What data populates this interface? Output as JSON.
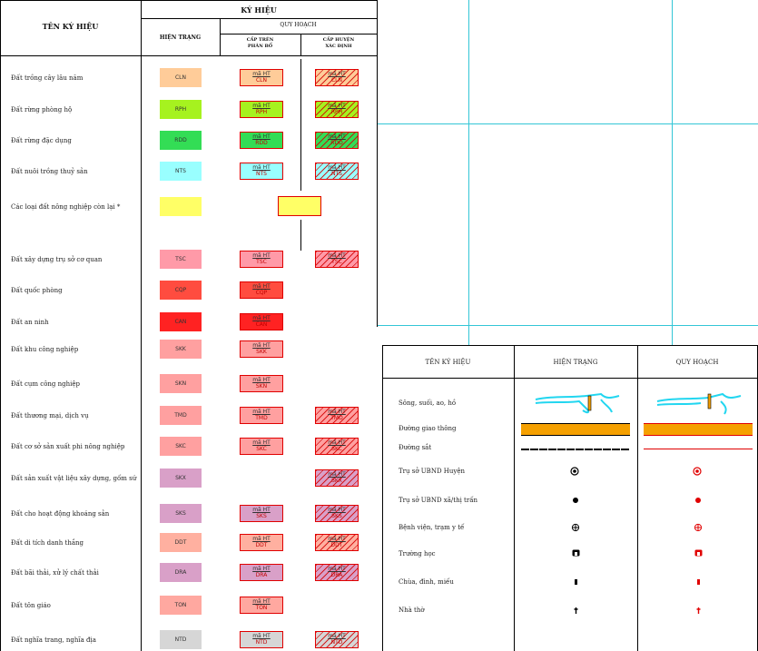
{
  "legend1": {
    "header": {
      "name_col": "TÊN KÝ HIỆU",
      "ky_hieu": "KÝ HIỆU",
      "hien_trang": "HIỆN TRẠNG",
      "quy_hoach": "QUY HOẠCH",
      "cap_tren_1": "CẤP TRÊN",
      "cap_tren_2": "PHÂN BỔ",
      "cap_huyen_1": "CẤP HUYỆN",
      "cap_huyen_2": "XÁC ĐỊNH"
    },
    "qh_numerator": "mã HT",
    "rows": [
      {
        "label": "Đất trồng cây lâu năm",
        "code": "CLN",
        "color": "#ffcc99",
        "alloc": true,
        "district": true
      },
      {
        "label": "Đất rừng phòng hộ",
        "code": "RPH",
        "color": "#a6f21f",
        "alloc": true,
        "district": true
      },
      {
        "label": "Đất rừng đặc dụng",
        "code": "RDD",
        "color": "#33dd55",
        "alloc": true,
        "district": true
      },
      {
        "label": "Đất nuôi trồng thuỷ sản",
        "code": "NTS",
        "color": "#99ffff",
        "alloc": true,
        "district": true
      },
      {
        "label": "Các loại đất nông nghiệp còn lại *",
        "code": "",
        "color": "#ffff66",
        "alloc": false,
        "district": false
      },
      {
        "label": "Đất xây dựng trụ sở cơ quan",
        "code": "TSC",
        "color": "#ff9aa8",
        "alloc": true,
        "district": true
      },
      {
        "label": "Đất quốc phòng",
        "code": "CQP",
        "color": "#ff4c3f",
        "alloc": true,
        "district": false
      },
      {
        "label": "Đất an ninh",
        "code": "CAN",
        "color": "#ff2222",
        "alloc": true,
        "district": false
      },
      {
        "label": "Đất khu công nghiệp",
        "code": "SKK",
        "color": "#ffa0a0",
        "alloc": true,
        "district": false
      },
      {
        "label": "Đất cụm công nghiệp",
        "code": "SKN",
        "color": "#ffa0a0",
        "alloc": true,
        "district": false
      },
      {
        "label": "Đất thương mại, dịch vụ",
        "code": "TMD",
        "color": "#ffa0a0",
        "alloc": true,
        "district": true
      },
      {
        "label": "Đất cơ sở sản xuất phi nông nghiệp",
        "code": "SKC",
        "color": "#ffa0a0",
        "alloc": true,
        "district": true
      },
      {
        "label": "Đất sản xuất vật liệu xây dựng, gốm sứ",
        "code": "SKX",
        "color": "#d9a0c8",
        "alloc": false,
        "district": true
      },
      {
        "label": "Đất cho hoạt động khoáng sản",
        "code": "SKS",
        "color": "#d9a0c8",
        "alloc": true,
        "district": true
      },
      {
        "label": "Đất di tích danh thắng",
        "code": "DDT",
        "color": "#ffb0a0",
        "alloc": true,
        "district": true
      },
      {
        "label": "Đất bãi thải, xử lý chất thải",
        "code": "DRA",
        "color": "#d9a0c8",
        "alloc": true,
        "district": true
      },
      {
        "label": "Đất tôn giáo",
        "code": "TON",
        "color": "#ffa8a0",
        "alloc": true,
        "district": false
      },
      {
        "label": "Đất nghĩa trang, nghĩa địa",
        "code": "NTD",
        "color": "#d6d6d6",
        "alloc": true,
        "district": true
      }
    ]
  },
  "legend2": {
    "header": {
      "name_col": "TÊN KÝ HIỆU",
      "hien_trang": "HIỆN TRẠNG",
      "quy_hoach": "QUY HOẠCH"
    },
    "rows": [
      {
        "label": "Sông, suối, ao, hồ",
        "icon": "river-icon"
      },
      {
        "label": "Đường giao thông",
        "icon": "road-icon"
      },
      {
        "label": "Đường sắt",
        "icon": "railway-icon"
      },
      {
        "label": "Trụ sở UBND Huyện",
        "icon": "district-office-icon"
      },
      {
        "label": "Trụ sở UBND xã/thị trấn",
        "icon": "commune-office-icon"
      },
      {
        "label": "Bệnh viện, trạm y tế",
        "icon": "hospital-icon"
      },
      {
        "label": "Trường học",
        "icon": "school-icon"
      },
      {
        "label": "Chùa, đình, miếu",
        "icon": "temple-icon"
      },
      {
        "label": "Nhà thờ",
        "icon": "church-icon"
      }
    ],
    "colors": {
      "current": "#000000",
      "planned": "#e00000",
      "water": "#22d6f0",
      "road": "#f5a000"
    }
  }
}
